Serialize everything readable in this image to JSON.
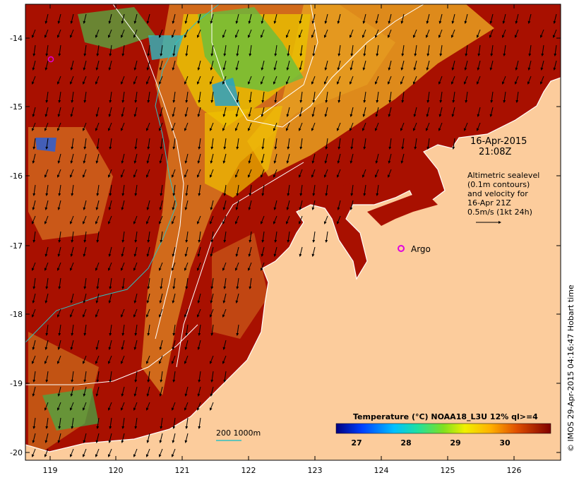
{
  "map": {
    "lon_ticks": [
      "119",
      "120",
      "121",
      "122",
      "123",
      "124",
      "125",
      "126"
    ],
    "lat_ticks": [
      "-14",
      "-15",
      "-16",
      "-17",
      "-18",
      "-19",
      "-20"
    ],
    "date_line1": "16-Apr-2015",
    "date_line2": "21:08Z",
    "altimetry_lines": [
      "Altimetric sealevel",
      "(0.1m contours)",
      "and velocity for",
      "16-Apr 21Z",
      "0.5m/s (1kt 24h)"
    ],
    "argo_label": "Argo",
    "depth_legend": "200  1000m",
    "colorbar_title": "Temperature (°C) NOAA18_L3U 12% ql>=4",
    "colorbar_ticks": [
      "27",
      "28",
      "29",
      "30"
    ],
    "credit": "© IMOS 29-Apr-2015 04:16:47 Hobart time",
    "colors": {
      "land": "#fccc9c",
      "sst_warm": "#9c0a00",
      "sst_mid": "#d2691e",
      "sst_yellow": "#e8c000",
      "argo": "#e000e0",
      "bathy": "#30c0c0"
    }
  }
}
